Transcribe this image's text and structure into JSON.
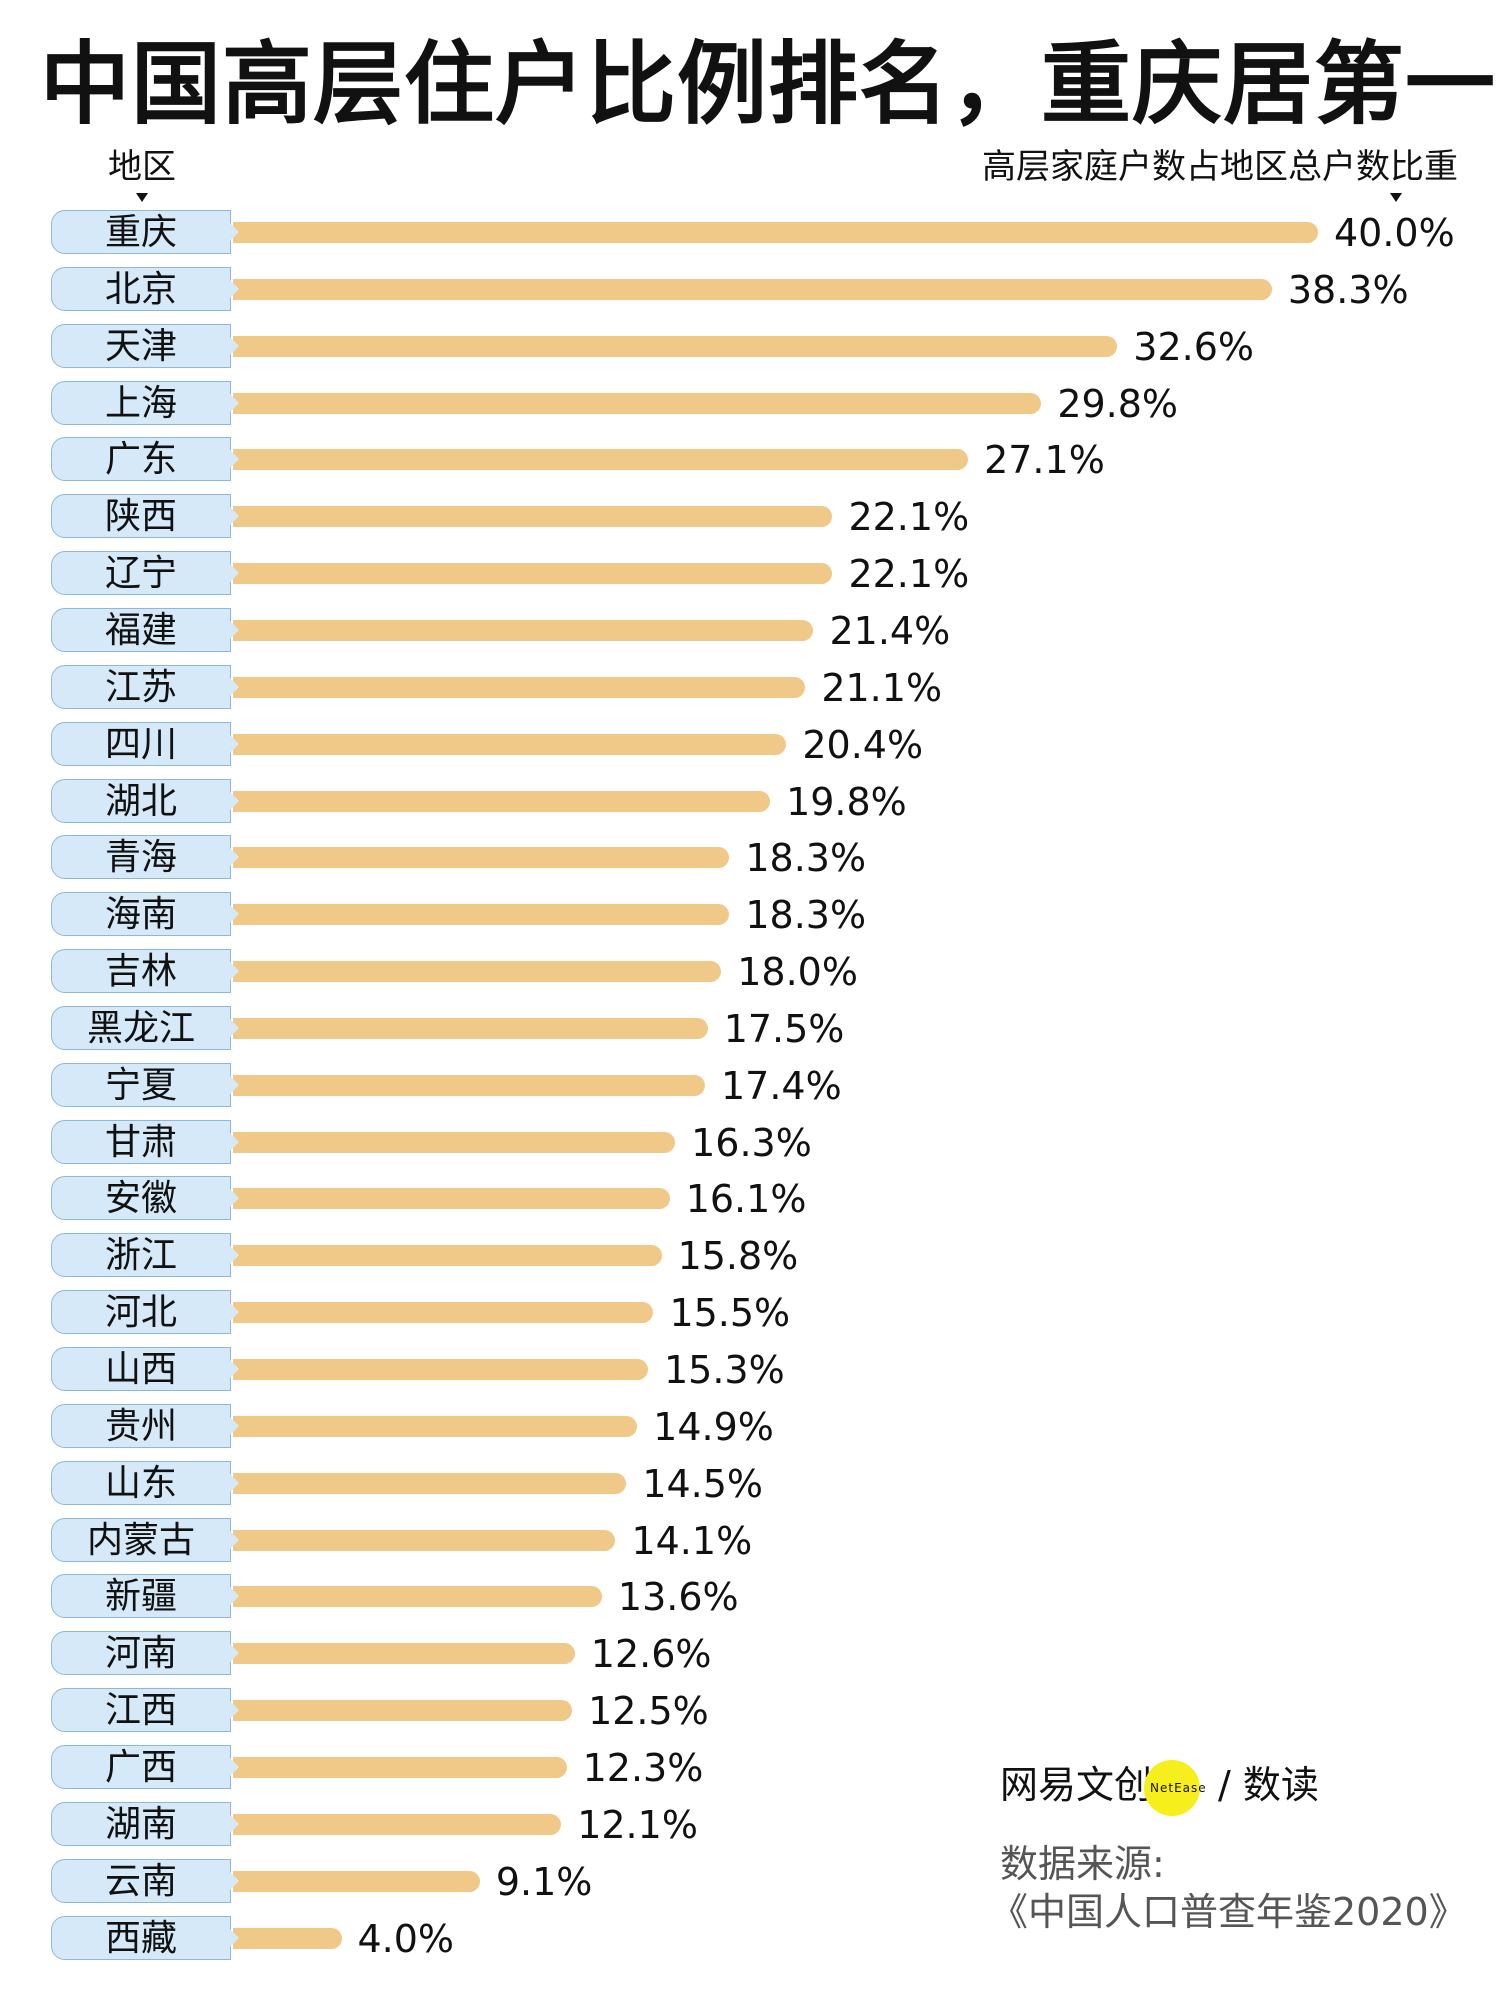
{
  "title": "中国高层住户比例排名，重庆居第一",
  "header": {
    "left": "地区",
    "right": "高层家庭户数占地区总户数比重"
  },
  "chart_data": {
    "type": "bar",
    "orientation": "horizontal",
    "title": "中国高层住户比例排名，重庆居第一",
    "xlabel": "高层家庭户数占地区总户数比重",
    "ylabel": "地区",
    "unit": "%",
    "xlim": [
      0,
      40
    ],
    "grid": false,
    "bar_color": "#f0c887",
    "label_color": "#d6e9f8",
    "categories": [
      "重庆",
      "北京",
      "天津",
      "上海",
      "广东",
      "陕西",
      "辽宁",
      "福建",
      "江苏",
      "四川",
      "湖北",
      "青海",
      "海南",
      "吉林",
      "黑龙江",
      "宁夏",
      "甘肃",
      "安徽",
      "浙江",
      "河北",
      "山西",
      "贵州",
      "山东",
      "内蒙古",
      "新疆",
      "河南",
      "江西",
      "广西",
      "湖南",
      "云南",
      "西藏"
    ],
    "values": [
      40.0,
      38.3,
      32.6,
      29.8,
      27.1,
      22.1,
      22.1,
      21.4,
      21.1,
      20.4,
      19.8,
      18.3,
      18.3,
      18.0,
      17.5,
      17.4,
      16.3,
      16.1,
      15.8,
      15.5,
      15.3,
      14.9,
      14.5,
      14.1,
      13.6,
      12.6,
      12.5,
      12.3,
      12.1,
      9.1,
      4.0
    ],
    "value_labels": [
      "40.0%",
      "38.3%",
      "32.6%",
      "29.8%",
      "27.1%",
      "22.1%",
      "22.1%",
      "21.4%",
      "21.1%",
      "20.4%",
      "19.8%",
      "18.3%",
      "18.3%",
      "18.0%",
      "17.5%",
      "17.4%",
      "16.3%",
      "16.1%",
      "15.8%",
      "15.5%",
      "15.3%",
      "14.9%",
      "14.5%",
      "14.1%",
      "13.6%",
      "12.6%",
      "12.5%",
      "12.3%",
      "12.1%",
      "9.1%",
      "4.0%"
    ]
  },
  "footer": {
    "logo_cn": "网易文创",
    "logo_en": "NetEase",
    "logo_sub": "/ 数读",
    "source_label": "数据来源:",
    "source": "《中国人口普查年鉴2020》"
  }
}
